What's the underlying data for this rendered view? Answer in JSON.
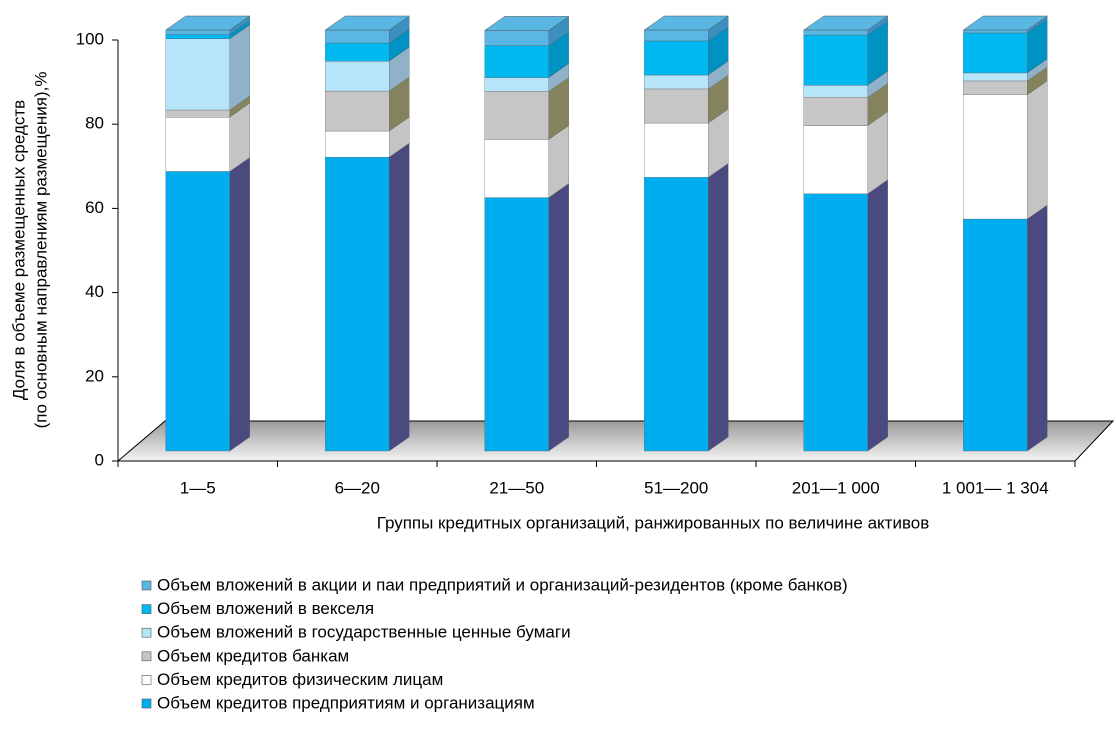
{
  "chart_data": {
    "type": "bar3d_stacked",
    "y_label": [
      "Доля в объеме размещенных средств",
      "(по основным направлениям размещения),%"
    ],
    "x_label": "Группы кредитных организаций, ранжированных по величине активов",
    "categories": [
      "1—5",
      "6—20",
      "21—50",
      "51—200",
      "201—1 000",
      "1 001— 1 304"
    ],
    "ylim": [
      0,
      100
    ],
    "yticks": [
      0,
      20,
      40,
      60,
      80,
      100
    ],
    "series": [
      {
        "name": "Объем кредитов предприятиям и организациям",
        "color": "#00aeef",
        "side": "#4a4a80",
        "values": [
          66.4,
          69.8,
          60.2,
          65.0,
          61.1,
          55.1
        ]
      },
      {
        "name": "Объем кредитов физическим лицам",
        "color": "#ffffff",
        "side": "#c4c4c4",
        "values": [
          12.9,
          6.2,
          13.8,
          12.9,
          16.2,
          29.5
        ]
      },
      {
        "name": "Объем кредитов банкам",
        "color": "#c6c6c6",
        "side": "#83835e",
        "values": [
          1.7,
          9.5,
          11.4,
          8.1,
          6.7,
          3.3
        ]
      },
      {
        "name": "Объем вложений в государственные ценные бумаги",
        "color": "#b6e4f8",
        "side": "#8fb2c9",
        "values": [
          16.9,
          7.1,
          3.3,
          3.3,
          2.9,
          1.9
        ]
      },
      {
        "name": "Объем вложений в векселя",
        "color": "#00b9f0",
        "side": "#0092c2",
        "values": [
          1.0,
          4.3,
          7.6,
          8.1,
          11.9,
          9.5
        ]
      },
      {
        "name": "Объем вложений в акции и паи предприятий и организаций-резидентов (кроме банков)",
        "color": "#5ab6e2",
        "side": "#3c8fbf",
        "values": [
          1.1,
          3.1,
          3.6,
          2.6,
          1.2,
          0.7
        ]
      }
    ]
  }
}
